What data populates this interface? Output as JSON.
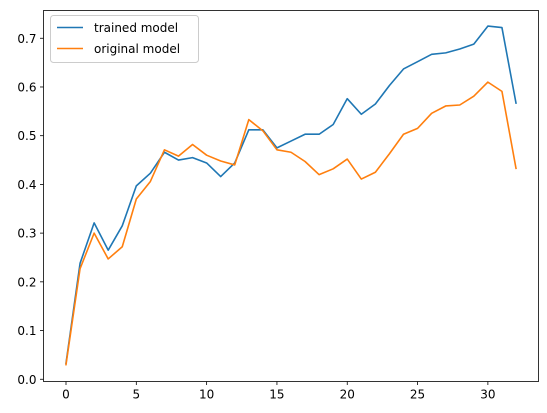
{
  "chart_data": {
    "type": "line",
    "title": "",
    "xlabel": "",
    "ylabel": "",
    "xlim": [
      -1.6,
      33.6
    ],
    "ylim": [
      -0.0046,
      0.757
    ],
    "x_ticks": [
      0,
      5,
      10,
      15,
      20,
      25,
      30
    ],
    "x_tick_labels": [
      "0",
      "5",
      "10",
      "15",
      "20",
      "25",
      "30"
    ],
    "y_ticks": [
      0.0,
      0.1,
      0.2,
      0.3,
      0.4,
      0.5,
      0.6,
      0.7
    ],
    "y_tick_labels": [
      "0.0",
      "0.1",
      "0.2",
      "0.3",
      "0.4",
      "0.5",
      "0.6",
      "0.7"
    ],
    "grid": false,
    "legend_position": "upper-left",
    "x": [
      0,
      1,
      2,
      3,
      4,
      5,
      6,
      7,
      8,
      9,
      10,
      11,
      12,
      13,
      14,
      15,
      16,
      17,
      18,
      19,
      20,
      21,
      22,
      23,
      24,
      25,
      26,
      27,
      28,
      29,
      30,
      31,
      32
    ],
    "series": [
      {
        "name": "trained model",
        "color": "#1f77b4",
        "values": [
          0.033,
          0.238,
          0.321,
          0.265,
          0.315,
          0.397,
          0.423,
          0.466,
          0.45,
          0.455,
          0.444,
          0.416,
          0.444,
          0.512,
          0.512,
          0.475,
          0.489,
          0.503,
          0.503,
          0.523,
          0.576,
          0.544,
          0.565,
          0.603,
          0.637,
          0.652,
          0.667,
          0.67,
          0.678,
          0.688,
          0.725,
          0.722,
          0.567
        ]
      },
      {
        "name": "original model",
        "color": "#ff7f0e",
        "values": [
          0.03,
          0.227,
          0.3,
          0.247,
          0.272,
          0.37,
          0.406,
          0.471,
          0.458,
          0.482,
          0.46,
          0.448,
          0.44,
          0.533,
          0.51,
          0.471,
          0.466,
          0.447,
          0.42,
          0.432,
          0.452,
          0.411,
          0.425,
          0.463,
          0.503,
          0.515,
          0.546,
          0.561,
          0.563,
          0.581,
          0.61,
          0.591,
          0.433
        ]
      }
    ]
  }
}
